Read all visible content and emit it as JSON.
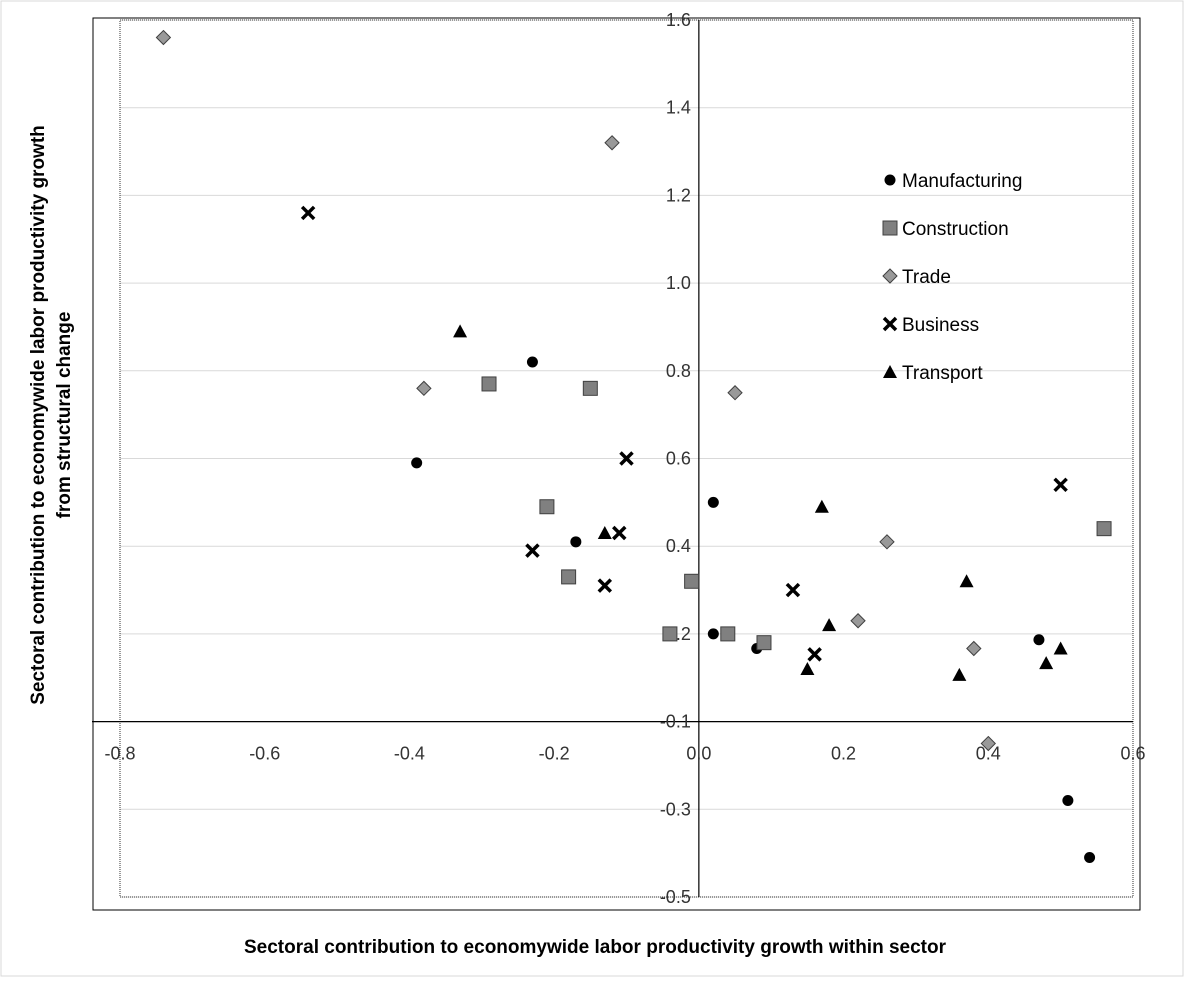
{
  "chart_data": {
    "type": "scatter",
    "title": "",
    "xlabel": "Sectoral contribution to economywide labor productivity growth within sector",
    "ylabel_line1": "Sectoral contribution to economywide labor productivity growth",
    "ylabel_line2": "from structural change",
    "xlim": [
      -0.8,
      0.6
    ],
    "ylim": [
      -0.5,
      1.6
    ],
    "x_ticks": [
      {
        "value": -0.8,
        "label": "-0.8"
      },
      {
        "value": -0.6,
        "label": "-0.6"
      },
      {
        "value": -0.4,
        "label": "-0.4"
      },
      {
        "value": -0.2,
        "label": "-0.2"
      },
      {
        "value": 0.0,
        "label": "0.0"
      },
      {
        "value": 0.2,
        "label": "0.2"
      },
      {
        "value": 0.4,
        "label": "0.4"
      },
      {
        "value": 0.6,
        "label": "0.6"
      }
    ],
    "y_ticks": [
      {
        "value": -0.5,
        "label": "-0.5"
      },
      {
        "value": -0.3,
        "label": "-0.3"
      },
      {
        "value": -0.1,
        "label": "-0.1"
      },
      {
        "value": 0.2,
        "label": "0.2"
      },
      {
        "value": 0.4,
        "label": "0.4"
      },
      {
        "value": 0.6,
        "label": "0.6"
      },
      {
        "value": 0.8,
        "label": "0.8"
      },
      {
        "value": 1.0,
        "label": "1.0"
      },
      {
        "value": 1.2,
        "label": "1.2"
      },
      {
        "value": 1.4,
        "label": "1.4"
      },
      {
        "value": 1.6,
        "label": "1.6"
      }
    ],
    "grid": true,
    "legend_position": "top-right",
    "series": [
      {
        "name": "Manufacturing",
        "marker": "circle",
        "color": "#000000",
        "points": [
          [
            -0.23,
            0.82
          ],
          [
            -0.39,
            0.59
          ],
          [
            -0.17,
            0.41
          ],
          [
            0.02,
            0.5
          ],
          [
            0.02,
            0.2
          ],
          [
            0.08,
            0.15
          ],
          [
            0.47,
            0.18
          ],
          [
            0.51,
            -0.28
          ],
          [
            0.54,
            -0.41
          ]
        ]
      },
      {
        "name": "Construction",
        "marker": "square",
        "color": "#808080",
        "points": [
          [
            -0.29,
            0.77
          ],
          [
            -0.15,
            0.76
          ],
          [
            -0.21,
            0.49
          ],
          [
            -0.18,
            0.33
          ],
          [
            -0.01,
            0.32
          ],
          [
            -0.04,
            0.2
          ],
          [
            0.04,
            0.2
          ],
          [
            0.09,
            0.17
          ],
          [
            0.56,
            0.44
          ]
        ]
      },
      {
        "name": "Trade",
        "marker": "diamond",
        "color": "#999999",
        "points": [
          [
            -0.74,
            1.56
          ],
          [
            -0.12,
            1.32
          ],
          [
            -0.38,
            0.76
          ],
          [
            0.05,
            0.75
          ],
          [
            0.26,
            0.41
          ],
          [
            0.22,
            0.23
          ],
          [
            0.38,
            0.15
          ],
          [
            0.4,
            -0.15
          ]
        ]
      },
      {
        "name": "Business",
        "marker": "x",
        "color": "#000000",
        "points": [
          [
            -0.54,
            1.16
          ],
          [
            -0.1,
            0.6
          ],
          [
            -0.11,
            0.43
          ],
          [
            -0.23,
            0.39
          ],
          [
            -0.13,
            0.31
          ],
          [
            0.13,
            0.3
          ],
          [
            0.16,
            0.13
          ],
          [
            0.5,
            0.54
          ]
        ]
      },
      {
        "name": "Transport",
        "marker": "triangle",
        "color": "#000000",
        "points": [
          [
            -0.33,
            0.89
          ],
          [
            -0.13,
            0.43
          ],
          [
            0.17,
            0.49
          ],
          [
            0.18,
            0.22
          ],
          [
            0.15,
            0.08
          ],
          [
            0.37,
            0.32
          ],
          [
            0.36,
            0.06
          ],
          [
            0.48,
            0.1
          ],
          [
            0.5,
            0.15
          ]
        ]
      }
    ]
  }
}
